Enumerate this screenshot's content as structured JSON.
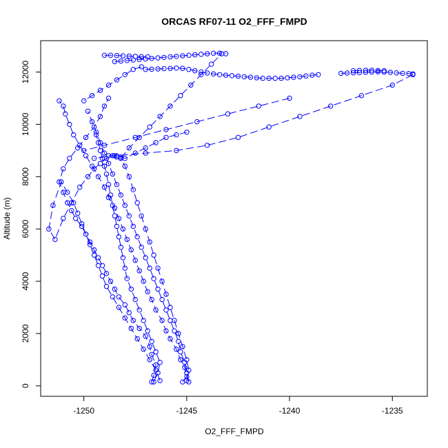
{
  "chart_data": {
    "type": "scatter",
    "title": "ORCAS RF07-11 O2_FFF_FMPD",
    "xlabel": "O2_FFF_FMPD",
    "ylabel": "Altitude (m)",
    "xlim": [
      -1252.1,
      -1233.3
    ],
    "ylim": [
      -400,
      13200
    ],
    "xticks": [
      -1250,
      -1245,
      -1240,
      -1235
    ],
    "yticks": [
      0,
      2000,
      4000,
      6000,
      8000,
      10000,
      12000
    ],
    "grid": false,
    "marker": "open-circle",
    "line_style": "dashed",
    "color": "#0000ff",
    "series": [
      {
        "x": [
          -1246.7,
          -1246.6,
          -1246.5,
          -1246.7,
          -1246.8,
          -1247.0,
          -1247.3,
          -1247.6,
          -1247.8,
          -1248.0,
          -1248.3,
          -1248.5,
          -1248.7,
          -1248.9,
          -1249.1,
          -1249.3,
          -1249.5,
          -1249.7,
          -1249.9,
          -1250.1,
          -1250.4,
          -1250.6,
          -1250.8,
          -1251.0,
          -1251.2,
          -1251.0,
          -1250.7,
          -1250.3,
          -1249.9,
          -1249.5,
          -1249.2,
          -1249.0,
          -1248.8
        ],
        "y": [
          150,
          400,
          800,
          1200,
          1500,
          1900,
          2200,
          2500,
          2800,
          3100,
          3400,
          3700,
          4000,
          4300,
          4600,
          4900,
          5200,
          5500,
          5800,
          6100,
          6400,
          6700,
          7000,
          7400,
          7800,
          8300,
          8700,
          9100,
          9500,
          9900,
          10300,
          10700,
          11000
        ]
      },
      {
        "x": [
          -1245.2,
          -1245.0,
          -1245.1,
          -1245.3,
          -1245.5,
          -1245.8,
          -1246.0,
          -1246.2,
          -1246.5,
          -1246.7,
          -1246.9,
          -1247.1,
          -1247.3,
          -1247.5,
          -1247.7,
          -1247.9,
          -1248.1,
          -1248.3,
          -1248.5,
          -1248.8,
          -1249.0,
          -1249.3,
          -1249.6,
          -1249.9,
          -1250.2,
          -1250.5,
          -1250.7,
          -1250.9,
          -1251.0,
          -1251.2
        ],
        "y": [
          150,
          350,
          700,
          1000,
          1400,
          1800,
          2100,
          2500,
          2900,
          3300,
          3600,
          4000,
          4400,
          4800,
          5200,
          5600,
          6000,
          6400,
          6800,
          7200,
          7600,
          8000,
          8400,
          8800,
          9200,
          9600,
          10000,
          10400,
          10700,
          10900
        ]
      },
      {
        "x": [
          -1246.3,
          -1246.5,
          -1246.8,
          -1247.1,
          -1247.4,
          -1247.7,
          -1248.0,
          -1248.3,
          -1248.6,
          -1248.9,
          -1249.1,
          -1249.3,
          -1249.5,
          -1249.7,
          -1249.9,
          -1250.1,
          -1250.3,
          -1250.5,
          -1250.8,
          -1251.1,
          -1251.5,
          -1251.7,
          -1251.4,
          -1251.0,
          -1250.6,
          -1250.2,
          -1249.8,
          -1249.5,
          -1249.2,
          -1248.9,
          -1248.6,
          -1248.4
        ],
        "y": [
          200,
          600,
          1000,
          1400,
          1800,
          2200,
          2600,
          3000,
          3400,
          3800,
          4200,
          4600,
          5000,
          5400,
          5800,
          6200,
          6600,
          7000,
          7400,
          7800,
          6900,
          6000,
          5600,
          6400,
          7000,
          7600,
          8000,
          8300,
          8500,
          8700,
          8800,
          8800
        ]
      },
      {
        "x": [
          -1244.9,
          -1245.0,
          -1245.1,
          -1245.3,
          -1245.4,
          -1245.6,
          -1245.8,
          -1246.0,
          -1246.2,
          -1246.4,
          -1246.6,
          -1246.8,
          -1247.0,
          -1247.2,
          -1247.4,
          -1247.6,
          -1247.8,
          -1248.0,
          -1248.2,
          -1248.4,
          -1248.6,
          -1248.8,
          -1249.0,
          -1249.2,
          -1249.4,
          -1249.6,
          -1249.8
        ],
        "y": [
          150,
          500,
          900,
          1300,
          1700,
          2100,
          2500,
          2900,
          3300,
          3700,
          4100,
          4500,
          4900,
          5300,
          5700,
          6100,
          6500,
          6900,
          7300,
          7700,
          8100,
          8500,
          8900,
          9300,
          9700,
          10100,
          10500
        ]
      },
      {
        "x": [
          -1246.6,
          -1246.4,
          -1246.3,
          -1246.5,
          -1246.7,
          -1246.9,
          -1247.1,
          -1247.3,
          -1247.5,
          -1247.7,
          -1247.9,
          -1248.0,
          -1248.1,
          -1248.2,
          -1248.3,
          -1248.4,
          -1248.5,
          -1248.6,
          -1248.7,
          -1248.8,
          -1248.9,
          -1249.0,
          -1249.1,
          -1249.2,
          -1249.3,
          -1249.4
        ],
        "y": [
          150,
          500,
          900,
          1300,
          1700,
          2100,
          2500,
          2900,
          3300,
          3700,
          4100,
          4500,
          4900,
          5300,
          5700,
          6100,
          6500,
          6900,
          7300,
          7700,
          8100,
          8400,
          8700,
          9000,
          9300,
          9600
        ]
      },
      {
        "x": [
          -1245.0,
          -1244.9,
          -1245.0,
          -1245.2,
          -1245.4,
          -1245.6,
          -1245.8,
          -1246.0,
          -1246.2,
          -1246.4,
          -1246.6,
          -1246.8,
          -1247.0,
          -1247.2,
          -1247.4,
          -1247.6,
          -1247.8,
          -1248.0,
          -1248.2
        ],
        "y": [
          200,
          600,
          1000,
          1500,
          2000,
          2500,
          3000,
          3500,
          4000,
          4500,
          5000,
          5500,
          6000,
          6500,
          7000,
          7500,
          8000,
          8400,
          8700
        ]
      },
      {
        "x": [
          -1248.8,
          -1248.6,
          -1248.4,
          -1248.2,
          -1248.0,
          -1247.5,
          -1247.0,
          -1246.5,
          -1246.0,
          -1245.5,
          -1245.0
        ],
        "y": [
          8800,
          8800,
          8750,
          8750,
          8700,
          8900,
          9100,
          9300,
          9500,
          9600,
          9700
        ]
      },
      {
        "x": [
          -1248.2,
          -1247.8,
          -1247.3,
          -1246.8,
          -1246.3,
          -1245.8,
          -1245.3,
          -1244.8,
          -1244.3,
          -1243.8,
          -1243.3
        ],
        "y": [
          8700,
          9100,
          9500,
          9900,
          10300,
          10700,
          11100,
          11500,
          11900,
          12300,
          12700
        ]
      },
      {
        "x": [
          -1248.5,
          -1248.2,
          -1247.9,
          -1247.6,
          -1247.3,
          -1247.0,
          -1246.7,
          -1246.4,
          -1246.1,
          -1245.8,
          -1245.5,
          -1245.2,
          -1244.9,
          -1244.6,
          -1244.3,
          -1244.0,
          -1243.7,
          -1243.4,
          -1243.1
        ],
        "y": [
          12400,
          12420,
          12440,
          12460,
          12480,
          12500,
          12520,
          12540,
          12560,
          12580,
          12600,
          12620,
          12640,
          12660,
          12680,
          12700,
          12720,
          12720,
          12700
        ]
      },
      {
        "x": [
          -1249.0,
          -1248.7,
          -1248.4,
          -1248.1,
          -1247.8,
          -1247.5,
          -1247.2,
          -1246.9
        ],
        "y": [
          12640,
          12640,
          12630,
          12620,
          12610,
          12600,
          12590,
          12580
        ]
      },
      {
        "x": [
          -1247.0,
          -1246.7,
          -1246.4,
          -1246.1,
          -1245.8,
          -1245.5,
          -1245.2,
          -1244.9,
          -1244.6,
          -1244.3,
          -1244.0,
          -1243.7,
          -1243.4,
          -1243.1,
          -1242.8,
          -1242.5,
          -1242.2,
          -1241.9,
          -1241.6,
          -1241.3,
          -1241.0,
          -1240.7,
          -1240.4,
          -1240.1,
          -1239.8,
          -1239.5,
          -1239.2,
          -1238.9,
          -1238.6
        ],
        "y": [
          12100,
          12110,
          12120,
          12130,
          12140,
          12150,
          12140,
          12100,
          12050,
          12000,
          11960,
          11930,
          11900,
          11880,
          11860,
          11840,
          11820,
          11800,
          11780,
          11760,
          11760,
          11760,
          11760,
          11780,
          11800,
          11820,
          11850,
          11880,
          11900
        ]
      },
      {
        "x": [
          -1237.5,
          -1237.2,
          -1236.9,
          -1236.6,
          -1236.3,
          -1236.0,
          -1235.7,
          -1235.4,
          -1235.1,
          -1234.8,
          -1234.5,
          -1234.2,
          -1234.0
        ],
        "y": [
          11950,
          11960,
          11970,
          11980,
          11990,
          12000,
          12010,
          12000,
          11990,
          11970,
          11950,
          11940,
          11930
        ]
      },
      {
        "x": [
          -1236.9,
          -1236.6,
          -1236.3,
          -1236.0,
          -1235.7,
          -1235.4
        ],
        "y": [
          12050,
          12060,
          12070,
          12070,
          12060,
          12050
        ]
      },
      {
        "x": [
          -1234.0,
          -1235.0,
          -1236.5,
          -1238.0,
          -1239.5,
          -1241.0,
          -1242.5,
          -1244.0,
          -1245.5,
          -1247.0,
          -1248.5,
          -1249.5
        ],
        "y": [
          11900,
          11500,
          11100,
          10700,
          10300,
          9900,
          9500,
          9200,
          9000,
          8900,
          8800,
          8700
        ]
      },
      {
        "x": [
          -1240.0,
          -1241.5,
          -1243.0,
          -1244.5,
          -1246.0,
          -1247.5,
          -1249.0,
          -1250.0
        ],
        "y": [
          11000,
          10700,
          10400,
          10100,
          9800,
          9500,
          9200,
          9000
        ]
      },
      {
        "x": [
          -1247.2,
          -1247.6,
          -1248.0,
          -1248.4,
          -1248.8,
          -1249.2,
          -1249.6,
          -1250.0
        ],
        "y": [
          12200,
          12100,
          11900,
          11700,
          11500,
          11300,
          11100,
          10900
        ]
      }
    ]
  }
}
